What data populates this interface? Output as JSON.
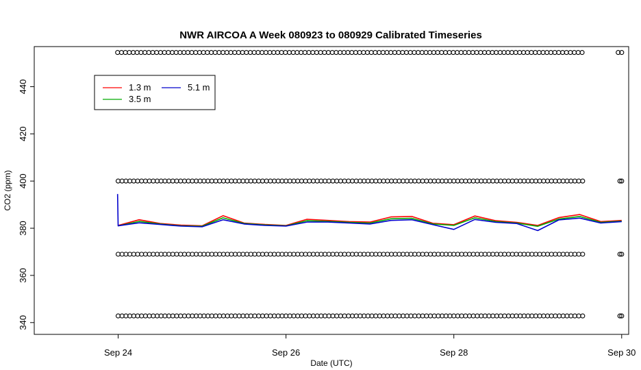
{
  "chart_data": {
    "type": "line",
    "title": "NWR AIRCOA A  Week 080923 to 080929  Calibrated Timeseries",
    "xlabel": "Date (UTC)",
    "ylabel": "CO2 (ppm)",
    "xlim": [
      "2008-09-23 00:00",
      "2008-09-30 02:00"
    ],
    "ylim": [
      335,
      457
    ],
    "x_ticks": [
      {
        "label": "Sep 24",
        "value": "2008-09-24 00:00"
      },
      {
        "label": "Sep 26",
        "value": "2008-09-26 00:00"
      },
      {
        "label": "Sep 28",
        "value": "2008-09-28 00:00"
      },
      {
        "label": "Sep 30",
        "value": "2008-09-30 00:00"
      }
    ],
    "y_ticks": [
      340,
      360,
      380,
      400,
      420,
      440
    ],
    "grid": false,
    "legend": {
      "placement": "top-left",
      "entries": [
        {
          "name": "1.3 m",
          "color": "#ff0000"
        },
        {
          "name": "3.5 m",
          "color": "#00aa00"
        },
        {
          "name": "5.1 m",
          "color": "#0000cc"
        }
      ]
    },
    "series": [
      {
        "name": "1.3 m",
        "color": "#ff0000",
        "x": [
          "2008-09-24 00:00",
          "2008-09-24 06:00",
          "2008-09-24 12:00",
          "2008-09-24 18:00",
          "2008-09-25 00:00",
          "2008-09-25 06:00",
          "2008-09-25 12:00",
          "2008-09-25 18:00",
          "2008-09-26 00:00",
          "2008-09-26 06:00",
          "2008-09-26 12:00",
          "2008-09-26 18:00",
          "2008-09-27 00:00",
          "2008-09-27 06:00",
          "2008-09-27 12:00",
          "2008-09-27 18:00",
          "2008-09-28 00:00",
          "2008-09-28 06:00",
          "2008-09-28 12:00",
          "2008-09-28 18:00",
          "2008-09-29 00:00",
          "2008-09-29 06:00",
          "2008-09-29 12:00",
          "2008-09-29 18:00",
          "2008-09-30 00:00"
        ],
        "values": [
          381.2,
          383.6,
          382.0,
          381.3,
          381.0,
          385.3,
          382.2,
          381.6,
          381.2,
          383.8,
          383.3,
          382.8,
          382.6,
          384.8,
          385.0,
          382.1,
          381.5,
          385.2,
          383.2,
          382.5,
          381.2,
          384.5,
          385.8,
          382.8,
          383.3
        ]
      },
      {
        "name": "3.5 m",
        "color": "#00aa00",
        "x": [
          "2008-09-24 00:00",
          "2008-09-24 06:00",
          "2008-09-24 12:00",
          "2008-09-24 18:00",
          "2008-09-25 00:00",
          "2008-09-25 06:00",
          "2008-09-25 12:00",
          "2008-09-25 18:00",
          "2008-09-26 00:00",
          "2008-09-26 06:00",
          "2008-09-26 12:00",
          "2008-09-26 18:00",
          "2008-09-27 00:00",
          "2008-09-27 06:00",
          "2008-09-27 12:00",
          "2008-09-27 18:00",
          "2008-09-28 00:00",
          "2008-09-28 06:00",
          "2008-09-28 12:00",
          "2008-09-28 18:00",
          "2008-09-29 00:00",
          "2008-09-29 06:00",
          "2008-09-29 12:00",
          "2008-09-29 18:00",
          "2008-09-30 00:00"
        ],
        "values": [
          381.0,
          382.9,
          381.8,
          381.0,
          380.8,
          384.4,
          382.0,
          381.4,
          381.0,
          383.2,
          382.9,
          382.5,
          382.2,
          384.0,
          384.2,
          381.8,
          381.2,
          384.4,
          382.8,
          382.2,
          380.8,
          383.9,
          385.0,
          382.5,
          383.0
        ]
      },
      {
        "name": "5.1 m",
        "color": "#0000cc",
        "x": [
          "2008-09-23 23:50",
          "2008-09-24 00:00",
          "2008-09-24 06:00",
          "2008-09-24 12:00",
          "2008-09-24 18:00",
          "2008-09-25 00:00",
          "2008-09-25 06:00",
          "2008-09-25 12:00",
          "2008-09-25 18:00",
          "2008-09-26 00:00",
          "2008-09-26 06:00",
          "2008-09-26 12:00",
          "2008-09-26 18:00",
          "2008-09-27 00:00",
          "2008-09-27 06:00",
          "2008-09-27 12:00",
          "2008-09-27 18:00",
          "2008-09-28 00:00",
          "2008-09-28 06:00",
          "2008-09-28 12:00",
          "2008-09-28 18:00",
          "2008-09-29 00:00",
          "2008-09-29 06:00",
          "2008-09-29 12:00",
          "2008-09-29 18:00",
          "2008-09-30 00:00"
        ],
        "values": [
          394.5,
          381.0,
          382.3,
          381.6,
          380.9,
          380.6,
          383.6,
          381.8,
          381.2,
          380.9,
          382.6,
          382.6,
          382.2,
          381.8,
          383.3,
          383.6,
          381.5,
          379.5,
          383.7,
          382.5,
          382.0,
          379.0,
          383.5,
          384.3,
          382.2,
          382.8
        ]
      }
    ],
    "marker_rows": [
      {
        "y": 454.5,
        "x_start": "2008-09-23 23:50",
        "x_end": "2008-09-29 13:00",
        "extra": [
          "2008-09-29 23:00",
          "2008-09-30 00:00"
        ]
      },
      {
        "y": 400.0,
        "x_start": "2008-09-24 00:00",
        "x_end": "2008-09-29 13:00",
        "extra": [
          "2008-09-29 23:30",
          "2008-09-30 00:00"
        ]
      },
      {
        "y": 369.0,
        "x_start": "2008-09-24 00:00",
        "x_end": "2008-09-29 13:00",
        "extra": [
          "2008-09-29 23:30",
          "2008-09-30 00:00"
        ]
      },
      {
        "y": 342.8,
        "x_start": "2008-09-24 00:00",
        "x_end": "2008-09-29 13:00",
        "extra": [
          "2008-09-29 23:30",
          "2008-09-30 00:00"
        ]
      }
    ]
  }
}
